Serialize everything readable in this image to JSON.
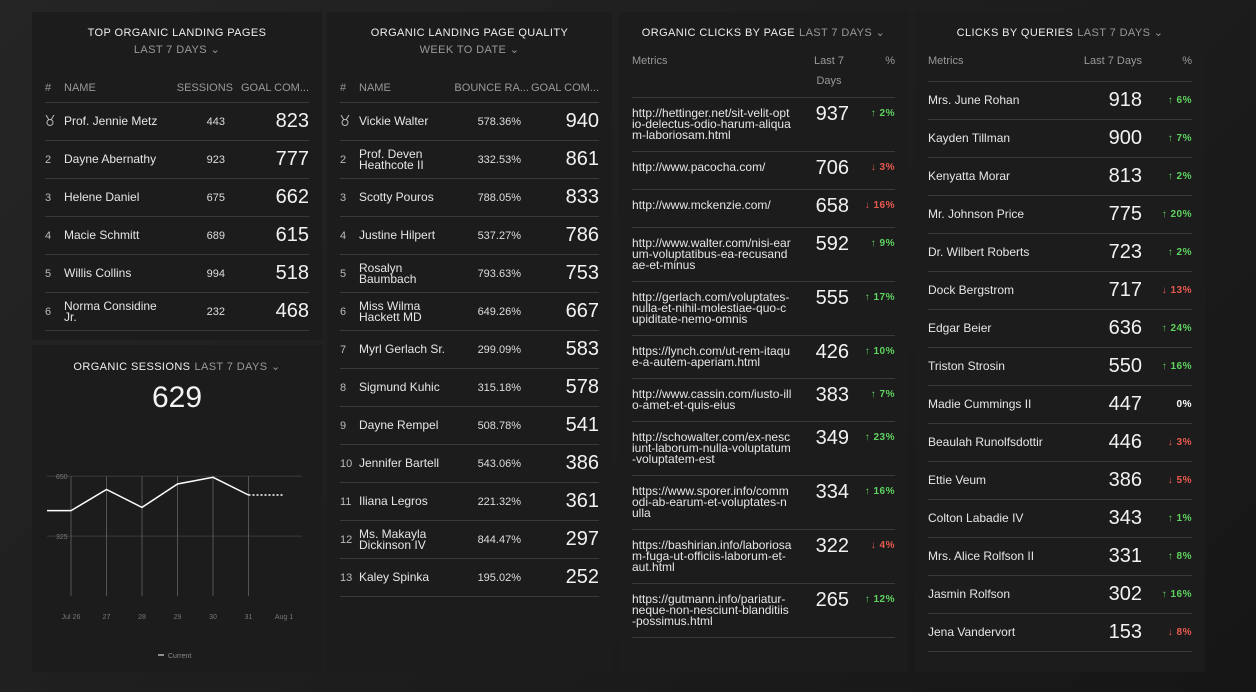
{
  "top_pages": {
    "title": "TOP ORGANIC LANDING PAGES",
    "subtitle": "LAST 7 DAYS",
    "columns": [
      "#",
      "NAME",
      "SESSIONS",
      "GOAL COM..."
    ],
    "rows": [
      {
        "name": "Prof. Jennie Metz",
        "sessions": 443,
        "goal": 823
      },
      {
        "rank": 2,
        "name": "Dayne Abernathy",
        "sessions": 923,
        "goal": 777
      },
      {
        "rank": 3,
        "name": "Helene Daniel",
        "sessions": 675,
        "goal": 662
      },
      {
        "rank": 4,
        "name": "Macie Schmitt",
        "sessions": 689,
        "goal": 615
      },
      {
        "rank": 5,
        "name": "Willis Collins",
        "sessions": 994,
        "goal": 518
      },
      {
        "rank": 6,
        "name": "Norma Considine Jr.",
        "sessions": 232,
        "goal": 468
      }
    ]
  },
  "sessions": {
    "title": "ORGANIC SESSIONS",
    "subtitle": "LAST 7 DAYS",
    "value": 629,
    "chart": {
      "type": "line",
      "categories": [
        "Jul 26",
        "27",
        "28",
        "29",
        "30",
        "31",
        "Aug 1"
      ],
      "values": [
        463,
        578,
        481,
        608,
        644,
        548,
        548
      ],
      "ylim": [
        0,
        700
      ],
      "yticks": [
        325,
        650
      ],
      "color": "#ffffff",
      "legend": "Current",
      "grid": true
    }
  },
  "quality": {
    "title": "ORGANIC LANDING PAGE QUALITY",
    "subtitle": "WEEK TO DATE",
    "columns": [
      "#",
      "NAME",
      "BOUNCE RA...",
      "GOAL COM..."
    ],
    "rows": [
      {
        "name": "Vickie Walter",
        "bounce": "578.36%",
        "goal": 940
      },
      {
        "rank": 2,
        "name": "Prof. Deven Heathcote II",
        "bounce": "332.53%",
        "goal": 861
      },
      {
        "rank": 3,
        "name": "Scotty Pouros",
        "bounce": "788.05%",
        "goal": 833
      },
      {
        "rank": 4,
        "name": "Justine Hilpert",
        "bounce": "537.27%",
        "goal": 786
      },
      {
        "rank": 5,
        "name": "Rosalyn Baumbach",
        "bounce": "793.63%",
        "goal": 753
      },
      {
        "rank": 6,
        "name": "Miss Wilma Hackett MD",
        "bounce": "649.26%",
        "goal": 667
      },
      {
        "rank": 7,
        "name": "Myrl Gerlach Sr.",
        "bounce": "299.09%",
        "goal": 583
      },
      {
        "rank": 8,
        "name": "Sigmund Kuhic",
        "bounce": "315.18%",
        "goal": 578
      },
      {
        "rank": 9,
        "name": "Dayne Rempel",
        "bounce": "508.78%",
        "goal": 541
      },
      {
        "rank": 10,
        "name": "Jennifer Bartell",
        "bounce": "543.06%",
        "goal": 386
      },
      {
        "rank": 11,
        "name": "Iliana Legros",
        "bounce": "221.32%",
        "goal": 361
      },
      {
        "rank": 12,
        "name": "Ms. Makayla Dickinson IV",
        "bounce": "844.47%",
        "goal": 297
      },
      {
        "rank": 13,
        "name": "Kaley Spinka",
        "bounce": "195.02%",
        "goal": 252
      }
    ]
  },
  "clicks_by_page": {
    "title": "ORGANIC CLICKS BY PAGE",
    "subtitle": "LAST 7 DAYS",
    "columns": [
      "Metrics",
      "Last 7 Days",
      "%"
    ],
    "rows": [
      {
        "name": "http://hettinger.net/sit-velit-optio-delectus-odio-harum-aliquam-laboriosam.html",
        "value": 937,
        "change": "2%",
        "dir": "up"
      },
      {
        "name": "http://www.pacocha.com/",
        "value": 706,
        "change": "3%",
        "dir": "down"
      },
      {
        "name": "http://www.mckenzie.com/",
        "value": 658,
        "change": "16%",
        "dir": "down"
      },
      {
        "name": "http://www.walter.com/nisi-earum-voluptatibus-ea-recusandae-et-minus",
        "value": 592,
        "change": "9%",
        "dir": "up"
      },
      {
        "name": "http://gerlach.com/voluptates-nulla-et-nihil-molestiae-quo-cupiditate-nemo-omnis",
        "value": 555,
        "change": "17%",
        "dir": "up"
      },
      {
        "name": "https://lynch.com/ut-rem-itaque-a-autem-aperiam.html",
        "value": 426,
        "change": "10%",
        "dir": "up"
      },
      {
        "name": "http://www.cassin.com/iusto-illo-amet-et-quis-eius",
        "value": 383,
        "change": "7%",
        "dir": "up"
      },
      {
        "name": "http://schowalter.com/ex-nesciunt-laborum-nulla-voluptatum-voluptatem-est",
        "value": 349,
        "change": "23%",
        "dir": "up"
      },
      {
        "name": "https://www.sporer.info/commodi-ab-earum-et-voluptates-nulla",
        "value": 334,
        "change": "16%",
        "dir": "up"
      },
      {
        "name": "https://bashirian.info/laboriosam-fuga-ut-officiis-laborum-et-aut.html",
        "value": 322,
        "change": "4%",
        "dir": "down"
      },
      {
        "name": "https://gutmann.info/pariatur-neque-non-nesciunt-blanditiis-possimus.html",
        "value": 265,
        "change": "12%",
        "dir": "up"
      }
    ]
  },
  "queries": {
    "title": "CLICKS BY QUERIES",
    "subtitle": "LAST 7 DAYS",
    "columns": [
      "Metrics",
      "Last 7 Days",
      "%"
    ],
    "rows": [
      {
        "name": "Mrs. June Rohan",
        "value": 918,
        "change": "6%",
        "dir": "up"
      },
      {
        "name": "Kayden Tillman",
        "value": 900,
        "change": "7%",
        "dir": "up"
      },
      {
        "name": "Kenyatta Morar",
        "value": 813,
        "change": "2%",
        "dir": "up"
      },
      {
        "name": "Mr. Johnson Price",
        "value": 775,
        "change": "20%",
        "dir": "up"
      },
      {
        "name": "Dr. Wilbert Roberts",
        "value": 723,
        "change": "2%",
        "dir": "up"
      },
      {
        "name": "Dock Bergstrom",
        "value": 717,
        "change": "13%",
        "dir": "down"
      },
      {
        "name": "Edgar Beier",
        "value": 636,
        "change": "24%",
        "dir": "up"
      },
      {
        "name": "Triston Strosin",
        "value": 550,
        "change": "16%",
        "dir": "up"
      },
      {
        "name": "Madie Cummings II",
        "value": 447,
        "change": "0%",
        "dir": "flat"
      },
      {
        "name": "Beaulah Runolfsdottir",
        "value": 446,
        "change": "3%",
        "dir": "down"
      },
      {
        "name": "Ettie Veum",
        "value": 386,
        "change": "5%",
        "dir": "down"
      },
      {
        "name": "Colton Labadie IV",
        "value": 343,
        "change": "1%",
        "dir": "up"
      },
      {
        "name": "Mrs. Alice Rolfson II",
        "value": 331,
        "change": "8%",
        "dir": "up"
      },
      {
        "name": "Jasmin Rolfson",
        "value": 302,
        "change": "16%",
        "dir": "up"
      },
      {
        "name": "Jena Vandervort",
        "value": 153,
        "change": "8%",
        "dir": "down"
      }
    ]
  }
}
